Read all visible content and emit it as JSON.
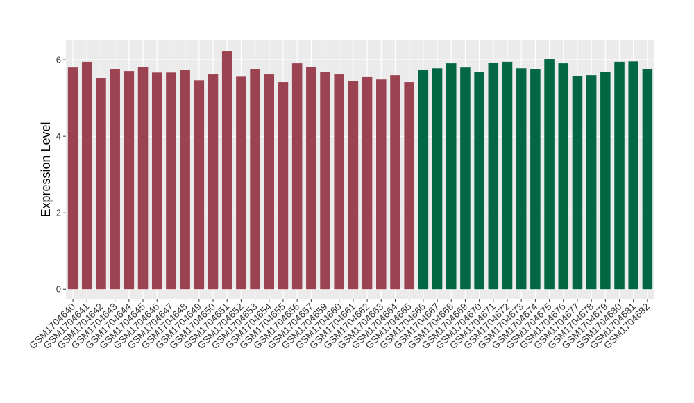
{
  "chart_data": {
    "type": "bar",
    "y_label": "Expression Level",
    "categories": [
      "GSM1704640",
      "GSM1704641",
      "GSM1704642",
      "GSM1704643",
      "GSM1704644",
      "GSM1704645",
      "GSM1704646",
      "GSM1704647",
      "GSM1704648",
      "GSM1704649",
      "GSM1704650",
      "GSM1704651",
      "GSM1704652",
      "GSM1704653",
      "GSM1704654",
      "GSM1704655",
      "GSM1704656",
      "GSM1704657",
      "GSM1704659",
      "GSM1704660",
      "GSM1704661",
      "GSM1704662",
      "GSM1704663",
      "GSM1704664",
      "GSM1704665",
      "GSM1704666",
      "GSM1704667",
      "GSM1704668",
      "GSM1704669",
      "GSM1704670",
      "GSM1704671",
      "GSM1704672",
      "GSM1704673",
      "GSM1704674",
      "GSM1704675",
      "GSM1704676",
      "GSM1704677",
      "GSM1704678",
      "GSM1704679",
      "GSM1704680",
      "GSM1704681",
      "GSM1704682"
    ],
    "values": [
      5.8,
      5.95,
      5.53,
      5.76,
      5.71,
      5.82,
      5.67,
      5.67,
      5.73,
      5.47,
      5.62,
      6.22,
      5.56,
      5.75,
      5.62,
      5.42,
      5.91,
      5.82,
      5.69,
      5.62,
      5.45,
      5.55,
      5.49,
      5.6,
      5.42,
      5.73,
      5.78,
      5.91,
      5.8,
      5.69,
      5.93,
      5.95,
      5.78,
      5.75,
      6.02,
      5.91,
      5.58,
      5.6,
      5.69,
      5.95,
      5.96,
      5.76
    ],
    "colors": [
      "#9b4350",
      "#9b4350",
      "#9b4350",
      "#9b4350",
      "#9b4350",
      "#9b4350",
      "#9b4350",
      "#9b4350",
      "#9b4350",
      "#9b4350",
      "#9b4350",
      "#9b4350",
      "#9b4350",
      "#9b4350",
      "#9b4350",
      "#9b4350",
      "#9b4350",
      "#9b4350",
      "#9b4350",
      "#9b4350",
      "#9b4350",
      "#9b4350",
      "#9b4350",
      "#9b4350",
      "#9b4350",
      "#036743",
      "#036743",
      "#036743",
      "#036743",
      "#036743",
      "#036743",
      "#036743",
      "#036743",
      "#036743",
      "#036743",
      "#036743",
      "#036743",
      "#036743",
      "#036743",
      "#036743",
      "#036743",
      "#036743"
    ],
    "ylim": [
      -0.25,
      6.53
    ],
    "yticks": [
      0,
      2,
      4,
      6
    ],
    "grid": true,
    "panel_color": "#ebebeb"
  }
}
